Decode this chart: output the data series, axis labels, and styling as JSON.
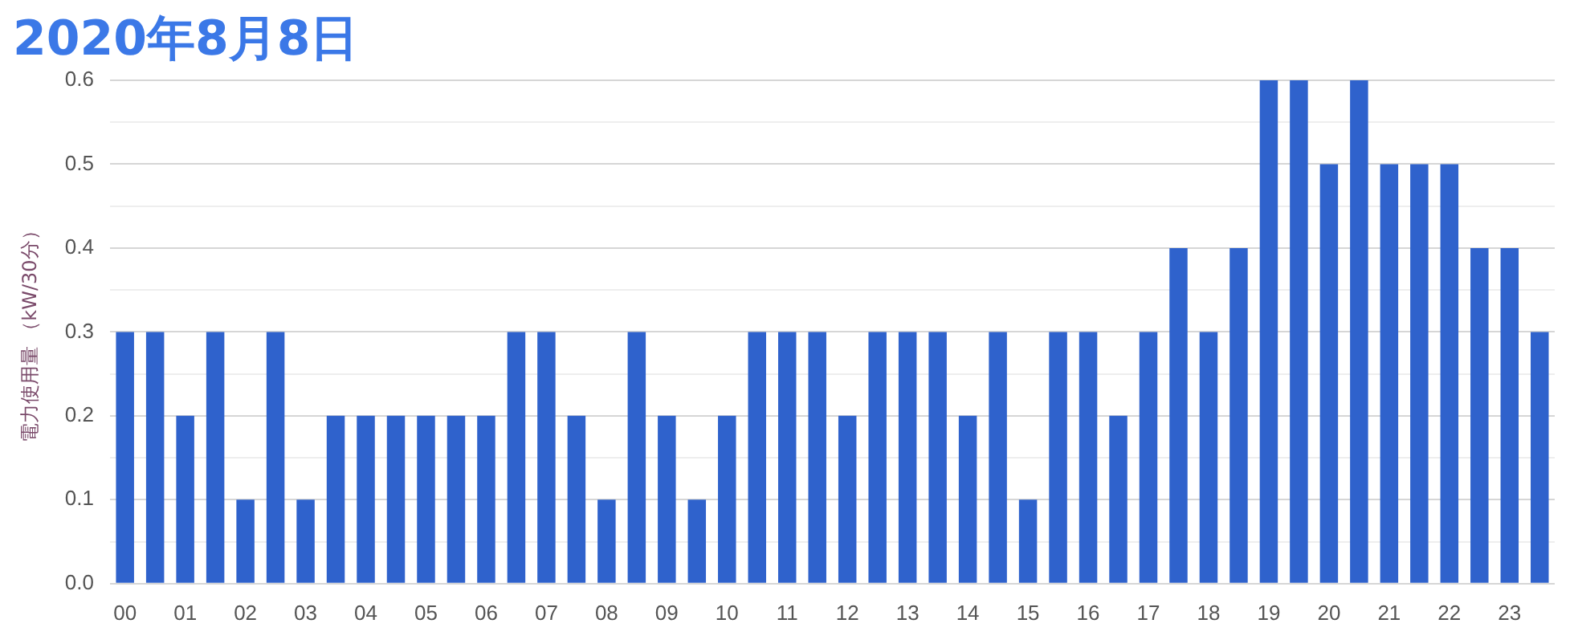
{
  "chart_data": {
    "type": "bar",
    "title": "2020年8月8日",
    "ylabel": "電力使用量 （kW/30分）",
    "categories": [
      "00",
      null,
      "01",
      null,
      "02",
      null,
      "03",
      null,
      "04",
      null,
      "05",
      null,
      "06",
      null,
      "07",
      null,
      "08",
      null,
      "09",
      null,
      "10",
      null,
      "11",
      null,
      "12",
      null,
      "13",
      null,
      "14",
      null,
      "15",
      null,
      "16",
      null,
      "17",
      null,
      "18",
      null,
      "19",
      null,
      "20",
      null,
      "21",
      null,
      "22",
      null,
      "23",
      null
    ],
    "values": [
      0.3,
      0.3,
      0.2,
      0.3,
      0.1,
      0.3,
      0.1,
      0.2,
      0.2,
      0.2,
      0.2,
      0.2,
      0.2,
      0.3,
      0.3,
      0.2,
      0.1,
      0.3,
      0.2,
      0.1,
      0.2,
      0.3,
      0.3,
      0.3,
      0.2,
      0.3,
      0.3,
      0.3,
      0.2,
      0.3,
      0.1,
      0.3,
      0.3,
      0.2,
      0.3,
      0.4,
      0.3,
      0.4,
      0.6,
      0.6,
      0.5,
      0.6,
      0.5,
      0.5,
      0.5,
      0.4,
      0.4,
      0.3
    ],
    "color": "#2f62cc",
    "ylim": [
      0,
      0.6
    ],
    "yticks": [
      {
        "value": 0,
        "label": "0.0"
      },
      {
        "value": 0.05,
        "label": null
      },
      {
        "value": 0.1,
        "label": "0.1"
      },
      {
        "value": 0.15,
        "label": null
      },
      {
        "value": 0.2,
        "label": "0.2"
      },
      {
        "value": 0.25,
        "label": null
      },
      {
        "value": 0.3,
        "label": "0.3"
      },
      {
        "value": 0.35,
        "label": null
      },
      {
        "value": 0.4,
        "label": "0.4"
      },
      {
        "value": 0.45,
        "label": null
      },
      {
        "value": 0.5,
        "label": "0.5"
      },
      {
        "value": 0.55,
        "label": null
      },
      {
        "value": 0.6,
        "label": "0.6"
      }
    ],
    "grid": "y",
    "legend": false
  }
}
